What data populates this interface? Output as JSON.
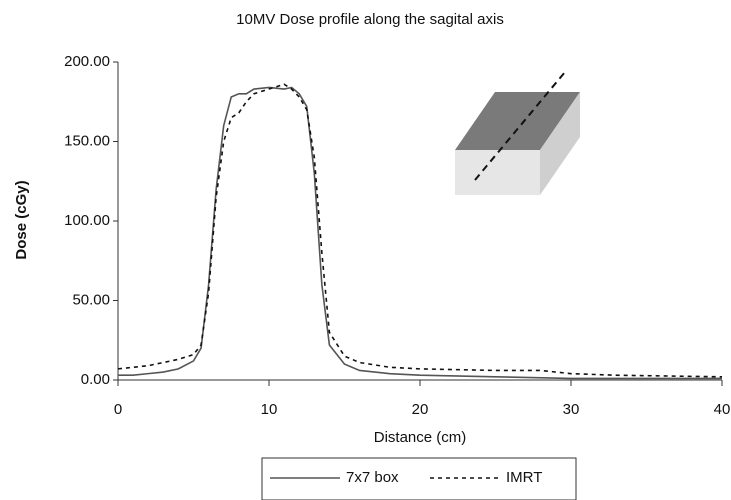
{
  "chart_data": {
    "type": "line",
    "title": "10MV Dose profile along the sagital axis",
    "x_label": "Distance (cm)",
    "y_label": "Dose (cGy)",
    "xlim": [
      0,
      40
    ],
    "xticks": [
      0,
      10,
      20,
      30,
      40
    ],
    "ylim": [
      0,
      200
    ],
    "yticks": [
      {
        "value": 0,
        "label": "0.00"
      },
      {
        "value": 50,
        "label": "50.00"
      },
      {
        "value": 100,
        "label": "100.00"
      },
      {
        "value": 150,
        "label": "150.00"
      },
      {
        "value": 200,
        "label": "200.00"
      }
    ],
    "grid": false,
    "legend": "bottom",
    "series": [
      {
        "name": "7x7 box",
        "color": "#555555",
        "dash": "solid",
        "x": [
          0,
          1,
          2,
          3,
          4,
          5,
          5.5,
          6,
          6.5,
          7,
          7.5,
          8,
          8.5,
          9,
          10,
          11,
          11.5,
          12,
          12.5,
          13,
          13.5,
          14,
          15,
          16,
          18,
          20,
          25,
          30,
          35,
          40
        ],
        "values": [
          3,
          3,
          4,
          5,
          7,
          12,
          20,
          60,
          120,
          160,
          178,
          180,
          180,
          183,
          184,
          183,
          184,
          180,
          172,
          130,
          60,
          22,
          10,
          6,
          4,
          3,
          2,
          1,
          1,
          1
        ]
      },
      {
        "name": "IMRT",
        "color": "#111111",
        "dash": "dashed",
        "x": [
          0,
          2,
          4,
          5,
          5.5,
          6,
          6.5,
          7,
          7.5,
          8,
          8.5,
          9,
          10,
          11,
          11.5,
          12,
          12.5,
          13,
          13.5,
          14,
          15,
          16,
          18,
          20,
          25,
          28,
          30,
          33,
          40
        ],
        "values": [
          7,
          9,
          13,
          16,
          22,
          55,
          115,
          150,
          165,
          168,
          175,
          180,
          183,
          186,
          183,
          178,
          170,
          140,
          80,
          30,
          15,
          11,
          8,
          7,
          6,
          6,
          4,
          3,
          2
        ]
      }
    ]
  }
}
